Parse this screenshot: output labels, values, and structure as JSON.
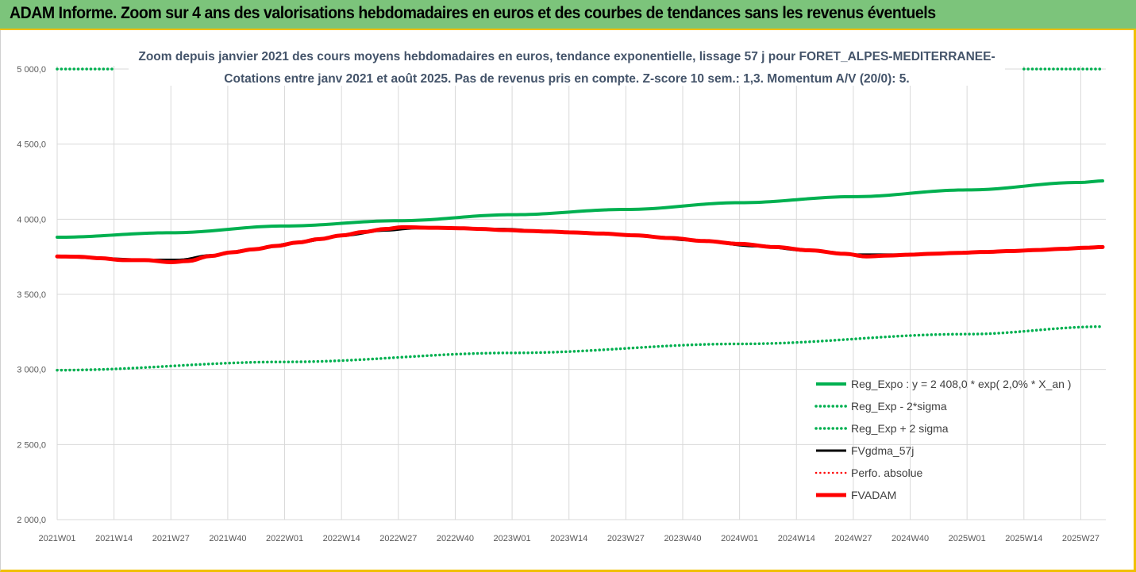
{
  "banner": {
    "title": "ADAM Informe. Zoom sur 4 ans des valorisations hebdomadaires en euros et des courbes de tendances sans les revenus éventuels"
  },
  "chart_data": {
    "type": "line",
    "title_line1": "Zoom depuis janvier 2021 des cours moyens hebdomadaires en euros, tendance exponentielle, lissage 57 j pour FORET_ALPES-MEDITERRANEE-",
    "title_line2": "Cotations entre janv 2021 et août 2025.  Pas de revenus pris en compte. Z-score 10 sem.: 1,3. Momentum A/V (20/0): 5.",
    "x_tick_labels": [
      "2021W01",
      "2021W14",
      "2021W27",
      "2021W40",
      "2022W01",
      "2022W14",
      "2022W27",
      "2022W40",
      "2023W01",
      "2023W14",
      "2023W27",
      "2023W40",
      "2024W01",
      "2024W14",
      "2024W27",
      "2024W40",
      "2025W01",
      "2025W14",
      "2025W27"
    ],
    "y_tick_labels": [
      "2 000,0",
      "2 500,0",
      "3 000,0",
      "3 500,0",
      "4 000,0",
      "4 500,0",
      "5 000,0"
    ],
    "ylim": [
      2000,
      5000
    ],
    "n_weeks": 240,
    "grid": true,
    "legend_position": "bottom-right",
    "series": [
      {
        "name": "Reg_Expo : y = 2 408,0 * exp( 2,0% *  X_an )",
        "color": "#00b050",
        "style": "solid",
        "width": 4,
        "points": [
          [
            0,
            3880
          ],
          [
            26,
            3910
          ],
          [
            52,
            3955
          ],
          [
            78,
            3990
          ],
          [
            104,
            4030
          ],
          [
            130,
            4065
          ],
          [
            156,
            4110
          ],
          [
            182,
            4150
          ],
          [
            208,
            4195
          ],
          [
            234,
            4245
          ],
          [
            239,
            4255
          ]
        ]
      },
      {
        "name": "Reg_Exp - 2*sigma",
        "color": "#00b050",
        "style": "dotted",
        "width": 3.5,
        "points": [
          [
            0,
            2995
          ],
          [
            52,
            3050
          ],
          [
            104,
            3110
          ],
          [
            156,
            3170
          ],
          [
            208,
            3235
          ],
          [
            239,
            3285
          ]
        ]
      },
      {
        "name": "Reg_Exp + 2 sigma",
        "color": "#00b050",
        "style": "dotted",
        "width": 3.5,
        "points": [
          [
            0,
            5000
          ],
          [
            13,
            5000
          ]
        ],
        "points_right": [
          [
            221,
            5000
          ],
          [
            239,
            5000
          ]
        ]
      },
      {
        "name": "FVgdma_57j",
        "color": "#000000",
        "style": "solid",
        "width": 3,
        "points": [
          [
            0,
            3750
          ],
          [
            10,
            3740
          ],
          [
            20,
            3730
          ],
          [
            28,
            3730
          ],
          [
            35,
            3760
          ],
          [
            45,
            3800
          ],
          [
            55,
            3845
          ],
          [
            65,
            3890
          ],
          [
            75,
            3925
          ],
          [
            82,
            3940
          ],
          [
            92,
            3940
          ],
          [
            102,
            3935
          ],
          [
            112,
            3920
          ],
          [
            120,
            3910
          ],
          [
            132,
            3895
          ],
          [
            145,
            3860
          ],
          [
            160,
            3820
          ],
          [
            172,
            3790
          ],
          [
            182,
            3765
          ],
          [
            192,
            3765
          ],
          [
            202,
            3772
          ],
          [
            212,
            3780
          ],
          [
            222,
            3790
          ],
          [
            232,
            3805
          ],
          [
            239,
            3815
          ]
        ]
      },
      {
        "name": "Perfo. absolue",
        "color": "#ff0000",
        "style": "dotted",
        "width": 2.5,
        "points": []
      },
      {
        "name": "FVADAM",
        "color": "#ff0000",
        "style": "solid",
        "width": 5,
        "points": [
          [
            0,
            3752
          ],
          [
            5,
            3750
          ],
          [
            10,
            3740
          ],
          [
            15,
            3728
          ],
          [
            20,
            3728
          ],
          [
            26,
            3714
          ],
          [
            30,
            3722
          ],
          [
            35,
            3755
          ],
          [
            40,
            3780
          ],
          [
            45,
            3800
          ],
          [
            50,
            3822
          ],
          [
            55,
            3845
          ],
          [
            60,
            3868
          ],
          [
            65,
            3892
          ],
          [
            70,
            3915
          ],
          [
            75,
            3935
          ],
          [
            79,
            3947
          ],
          [
            86,
            3943
          ],
          [
            92,
            3940
          ],
          [
            97,
            3935
          ],
          [
            102,
            3928
          ],
          [
            108,
            3922
          ],
          [
            112,
            3918
          ],
          [
            118,
            3912
          ],
          [
            124,
            3905
          ],
          [
            132,
            3893
          ],
          [
            140,
            3875
          ],
          [
            148,
            3855
          ],
          [
            156,
            3836
          ],
          [
            164,
            3815
          ],
          [
            172,
            3793
          ],
          [
            180,
            3770
          ],
          [
            185,
            3752
          ],
          [
            190,
            3758
          ],
          [
            195,
            3764
          ],
          [
            200,
            3770
          ],
          [
            206,
            3776
          ],
          [
            212,
            3782
          ],
          [
            218,
            3788
          ],
          [
            224,
            3795
          ],
          [
            230,
            3803
          ],
          [
            235,
            3810
          ],
          [
            239,
            3815
          ]
        ]
      }
    ]
  }
}
